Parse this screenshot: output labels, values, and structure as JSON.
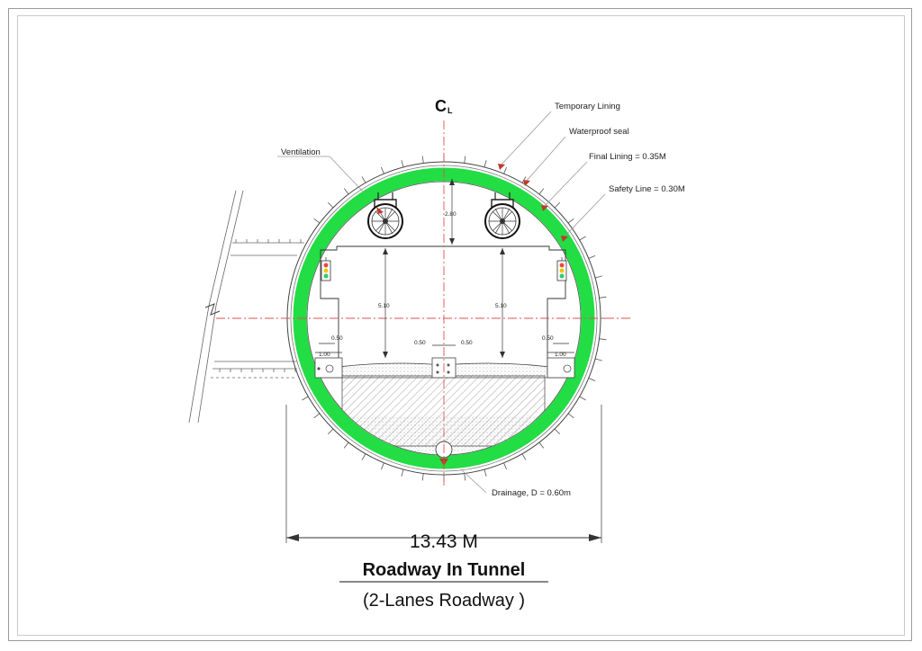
{
  "centerline": {
    "main": "C",
    "sub": "L"
  },
  "callouts": {
    "temporary_lining": "Temporary Lining",
    "waterproof_seal": "Waterproof seal",
    "final_lining": "Final Lining = 0.35M",
    "safety_line": "Safety Line = 0.30M",
    "ventilation": "Ventilation",
    "drainage": "Drainage, D = 0.60m"
  },
  "dimensions": {
    "crown_clearance": "2.80",
    "lane_height_left": "5.10",
    "lane_height_right": "5.10",
    "walkway_offset_left": "0.50",
    "walkway_width_left": "1.00",
    "median_left": "0.50",
    "median_right": "0.50",
    "walkway_offset_right": "0.50",
    "walkway_width_right": "1.00",
    "overall_width": "13.43 M"
  },
  "title": "Roadway In Tunnel",
  "subtitle": "(2-Lanes Roadway )",
  "colors": {
    "final_lining": "#22dd44",
    "centerline": "#d9534f",
    "marker": "#c0392b",
    "linework": "#333333"
  }
}
